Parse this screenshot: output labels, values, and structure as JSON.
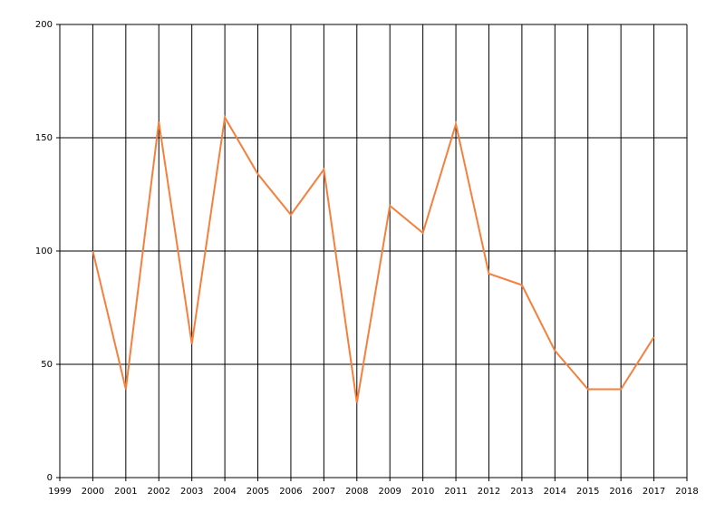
{
  "chart_data": {
    "type": "line",
    "x": [
      2000,
      2001,
      2002,
      2003,
      2004,
      2005,
      2006,
      2007,
      2008,
      2009,
      2010,
      2011,
      2012,
      2013,
      2014,
      2015,
      2016,
      2017
    ],
    "series": [
      {
        "color": "#f5803e",
        "values": [
          100,
          39,
          157,
          59,
          159,
          134,
          116,
          136,
          33,
          120,
          108,
          156,
          90,
          85,
          56,
          39,
          39,
          62
        ]
      }
    ],
    "xlim": [
      1999,
      2018
    ],
    "xticks": [
      1999,
      2000,
      2001,
      2002,
      2003,
      2004,
      2005,
      2006,
      2007,
      2008,
      2009,
      2010,
      2011,
      2012,
      2013,
      2014,
      2015,
      2016,
      2017,
      2018
    ],
    "ylim": [
      0,
      200
    ],
    "yticks": [
      0,
      50,
      100,
      150,
      200
    ],
    "grid": true
  }
}
